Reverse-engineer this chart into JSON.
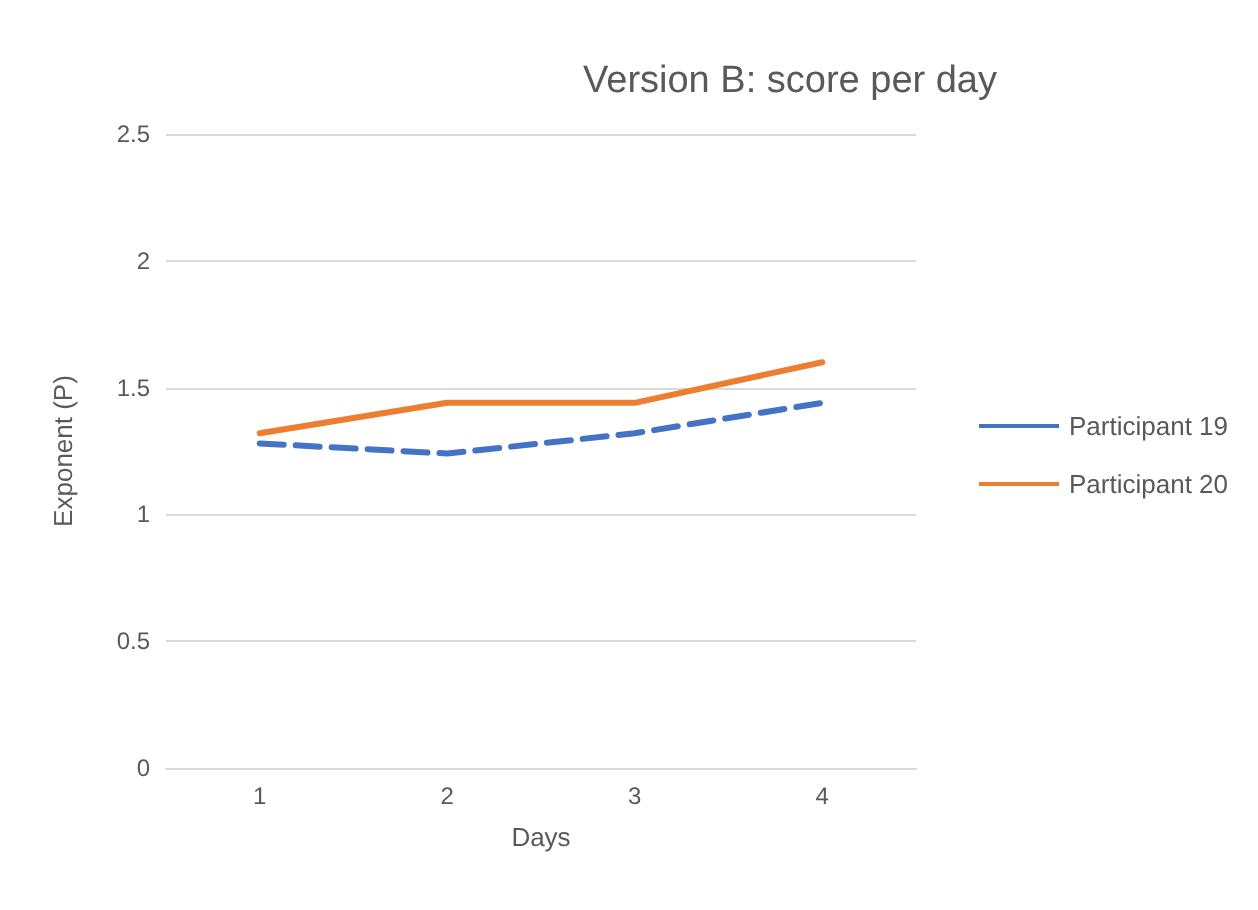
{
  "chart_data": {
    "type": "line",
    "title": "Version B: score per day",
    "xlabel": "Days",
    "ylabel": "Exponent (P)",
    "categories": [
      "1",
      "2",
      "3",
      "4"
    ],
    "series": [
      {
        "name": "Participant 19",
        "color": "#4472c4",
        "line_style": "dashed",
        "values": [
          1.28,
          1.24,
          1.32,
          1.44
        ]
      },
      {
        "name": "Participant 20",
        "color": "#ed7d31",
        "line_style": "solid",
        "values": [
          1.32,
          1.44,
          1.44,
          1.6
        ]
      }
    ],
    "ylim": [
      0,
      2.5
    ],
    "yticks": [
      0,
      0.5,
      1,
      1.5,
      2,
      2.5
    ],
    "grid": "y",
    "legend": "right",
    "marker": "none"
  }
}
